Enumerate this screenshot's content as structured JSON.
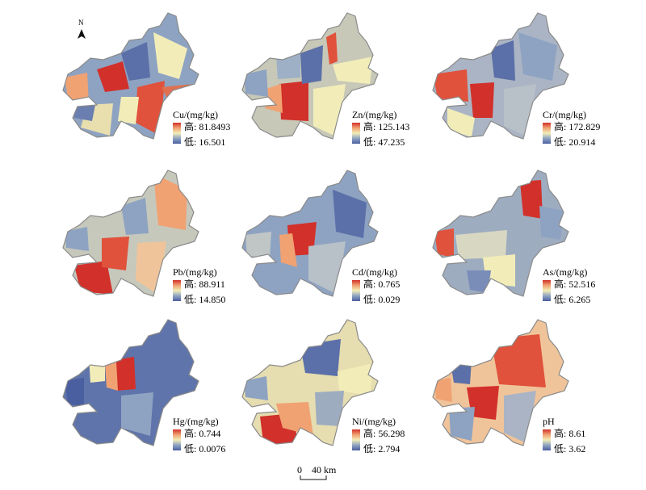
{
  "north_arrow": {
    "label": "N"
  },
  "scale_bar": {
    "zero_label": "0",
    "distance_label": "40 km"
  },
  "legend": {
    "high_prefix": "高: ",
    "low_prefix": "低: "
  },
  "ramp_colors": [
    "#4a5fa0",
    "#8ea3c2",
    "#f2edb8",
    "#f0a273",
    "#d2302a"
  ],
  "boundary_color": "#8a8a8a",
  "panels": [
    {
      "title": "Cu/(mg/kg)",
      "high": "81.8493",
      "low": "16.501"
    },
    {
      "title": "Zn/(mg/kg)",
      "high": "125.143",
      "low": "47.235"
    },
    {
      "title": "Cr/(mg/kg)",
      "high": "172.829",
      "low": "20.914"
    },
    {
      "title": "Pb/(mg/kg)",
      "high": "88.911",
      "low": "14.850"
    },
    {
      "title": "Cd/(mg/kg)",
      "high": "0.765",
      "low": "0.029"
    },
    {
      "title": "As/(mg/kg)",
      "high": "52.516",
      "low": "6.265"
    },
    {
      "title": "Hg/(mg/kg)",
      "high": "0.744",
      "low": "0.0076"
    },
    {
      "title": "Ni/(mg/kg)",
      "high": "56.298",
      "low": "2.794"
    },
    {
      "title": "pH",
      "high": "8.61",
      "low": "3.62"
    }
  ]
}
